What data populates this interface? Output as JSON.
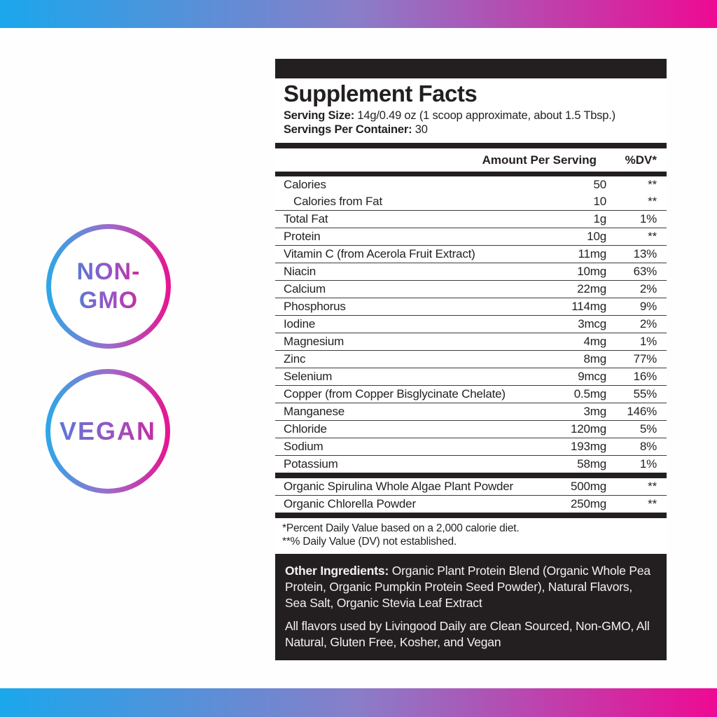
{
  "colors": {
    "gradient_cyan": "#1BA7EC",
    "gradient_magenta": "#EE0A93",
    "label_black": "#231F20",
    "badge_text_blue": "#5B78D6",
    "badge_text_magenta": "#C42DA0"
  },
  "badges": [
    {
      "id": "non-gmo",
      "lines": [
        "NON-",
        "GMO"
      ]
    },
    {
      "id": "vegan",
      "lines": [
        "VEGAN"
      ]
    }
  ],
  "panel": {
    "title": "Supplement Facts",
    "serving_size_label": "Serving Size:",
    "serving_size_value": "14g/0.49 oz (1 scoop approximate, about 1.5 Tbsp.)",
    "servings_label": "Servings Per Container:",
    "servings_value": "30",
    "col_amount": "Amount Per Serving",
    "col_dv": "%DV*",
    "rows": [
      {
        "name": "Calories",
        "amount": "50",
        "dv": "**"
      },
      {
        "name": "Calories from Fat",
        "amount": "10",
        "dv": "**",
        "indent": true,
        "nodivider": true
      },
      {
        "name": "Total Fat",
        "amount": "1g",
        "dv": "1%"
      },
      {
        "name": "Protein",
        "amount": "10g",
        "dv": "**"
      },
      {
        "name": "Vitamin C (from Acerola Fruit Extract)",
        "amount": "11mg",
        "dv": "13%"
      },
      {
        "name": "Niacin",
        "amount": "10mg",
        "dv": "63%"
      },
      {
        "name": "Calcium",
        "amount": "22mg",
        "dv": "2%"
      },
      {
        "name": "Phosphorus",
        "amount": "114mg",
        "dv": "9%"
      },
      {
        "name": "Iodine",
        "amount": "3mcg",
        "dv": "2%"
      },
      {
        "name": "Magnesium",
        "amount": "4mg",
        "dv": "1%"
      },
      {
        "name": "Zinc",
        "amount": "8mg",
        "dv": "77%"
      },
      {
        "name": "Selenium",
        "amount": "9mcg",
        "dv": "16%"
      },
      {
        "name": "Copper (from Copper Bisglycinate Chelate)",
        "amount": "0.5mg",
        "dv": "55%"
      },
      {
        "name": "Manganese",
        "amount": "3mg",
        "dv": "146%"
      },
      {
        "name": "Chloride",
        "amount": "120mg",
        "dv": "5%"
      },
      {
        "name": "Sodium",
        "amount": "193mg",
        "dv": "8%"
      },
      {
        "name": "Potassium",
        "amount": "58mg",
        "dv": "1%"
      }
    ],
    "extra_rows": [
      {
        "name": "Organic Spirulina Whole Algae Plant Powder",
        "amount": "500mg",
        "dv": "**"
      },
      {
        "name": "Organic Chlorella Powder",
        "amount": "250mg",
        "dv": "**"
      }
    ],
    "footnotes": [
      "*Percent Daily Value based on a 2,000 calorie diet.",
      "**% Daily Value (DV) not established."
    ],
    "other_box": {
      "lead": "Other Ingredients:",
      "text1": "Organic Plant Protein Blend (Organic Whole Pea Protein, Organic Pumpkin Protein Seed Powder), Natural Flavors, Sea Salt, Organic Stevia Leaf Extract",
      "text2": "All flavors used by Livingood Daily are Clean Sourced, Non-GMO, All Natural, Gluten Free, Kosher, and Vegan"
    }
  }
}
